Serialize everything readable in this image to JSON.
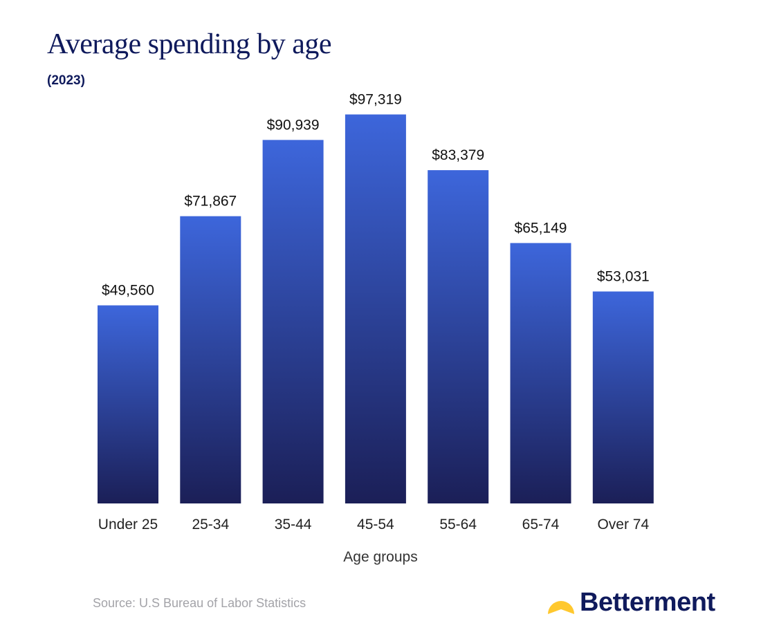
{
  "chart_data": {
    "type": "bar",
    "title": "Average spending by age",
    "subtitle": "(2023)",
    "xlabel": "Age groups",
    "ylabel": "",
    "categories": [
      "Under 25",
      "25-34",
      "35-44",
      "45-54",
      "55-64",
      "65-74",
      "Over 74"
    ],
    "values": [
      49560,
      71867,
      90939,
      97319,
      83379,
      65149,
      53031
    ],
    "data_labels": [
      "$49,560",
      "$71,867",
      "$90,939",
      "$97,319",
      "$83,379",
      "$65,149",
      "$53,031"
    ],
    "ylim": [
      0,
      100000
    ],
    "grid": false,
    "bar_color_top": "#3d66db",
    "bar_color_bottom": "#1b1f57"
  },
  "footer": {
    "source": "Source: U.S Bureau of Labor Statistics",
    "logo_text": "Betterment",
    "logo_color": "#ffc82e"
  }
}
